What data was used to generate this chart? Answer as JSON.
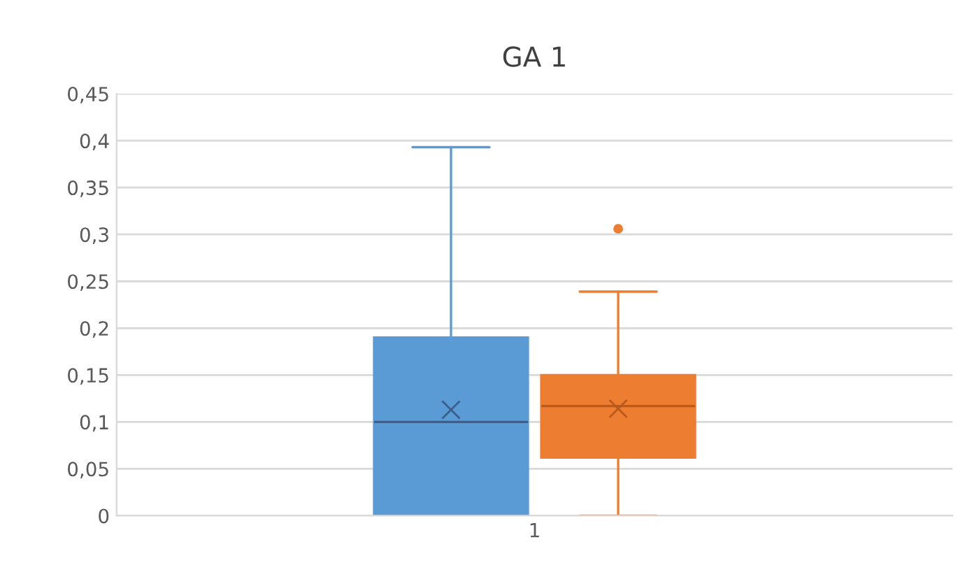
{
  "chart_data": {
    "type": "box",
    "title": "GA 1",
    "categories": [
      "1"
    ],
    "series": [
      {
        "color": "#5b9bd5",
        "boxes": [
          {
            "low": 0,
            "q1": 0,
            "median": 0.1,
            "q3": 0.19,
            "high": 0.393,
            "mean": 0.113
          }
        ]
      },
      {
        "color": "#ed7d31",
        "boxes": [
          {
            "low": 0,
            "q1": 0.062,
            "median": 0.117,
            "q3": 0.15,
            "high": 0.239,
            "mean": 0.114,
            "outliers": [
              0.306
            ]
          }
        ]
      }
    ],
    "ylim": [
      0,
      0.45
    ],
    "yticks": [
      0,
      {
        "value": 0.05,
        "label": "0,05"
      },
      {
        "value": 0.1,
        "label": "0,1"
      },
      {
        "value": 0.15,
        "label": "0,15"
      },
      {
        "value": 0.2,
        "label": "0,2"
      },
      {
        "value": 0.25,
        "label": "0,25"
      },
      {
        "value": 0.3,
        "label": "0,3"
      },
      {
        "value": 0.35,
        "label": "0,35"
      },
      {
        "value": 0.4,
        "label": "0,4"
      },
      {
        "value": 0.45,
        "label": "0,45"
      }
    ],
    "grid": "y",
    "legend": false
  }
}
